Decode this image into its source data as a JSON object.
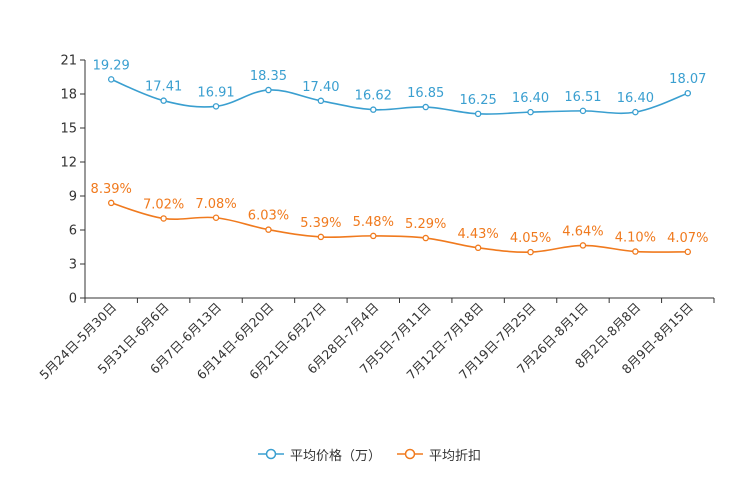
{
  "chart_data": {
    "type": "line",
    "title": "",
    "xlabel": "",
    "ylabel": "",
    "ylim": [
      0,
      21
    ],
    "yticks": [
      0,
      3,
      6,
      9,
      12,
      15,
      18,
      21
    ],
    "categories": [
      "5月24日-5月30日",
      "5月31日-6月6日",
      "6月7日-6月13日",
      "6月14日-6月20日",
      "6月21日-6月27日",
      "6月28日-7月4日",
      "7月5日-7月11日",
      "7月12日-7月18日",
      "7月19日-7月25日",
      "7月26日-8月1日",
      "8月2日-8月8日",
      "8月9日-8月15日"
    ],
    "series": [
      {
        "name": "平均价格（万）",
        "color": "#3a9fd0",
        "values": [
          19.29,
          17.41,
          16.91,
          18.35,
          17.4,
          16.62,
          16.85,
          16.25,
          16.4,
          16.51,
          16.4,
          18.07
        ],
        "labels": [
          "19.29",
          "17.41",
          "16.91",
          "18.35",
          "17.40",
          "16.62",
          "16.85",
          "16.25",
          "16.40",
          "16.51",
          "16.40",
          "18.07"
        ]
      },
      {
        "name": "平均折扣",
        "color": "#f07a1e",
        "values": [
          8.39,
          7.02,
          7.08,
          6.03,
          5.39,
          5.48,
          5.29,
          4.43,
          4.05,
          4.64,
          4.1,
          4.07
        ],
        "labels": [
          "8.39%",
          "7.02%",
          "7.08%",
          "6.03%",
          "5.39%",
          "5.48%",
          "5.29%",
          "4.43%",
          "4.05%",
          "4.64%",
          "4.10%",
          "4.07%"
        ]
      }
    ],
    "legend_position": "bottom-center",
    "grid": false
  }
}
